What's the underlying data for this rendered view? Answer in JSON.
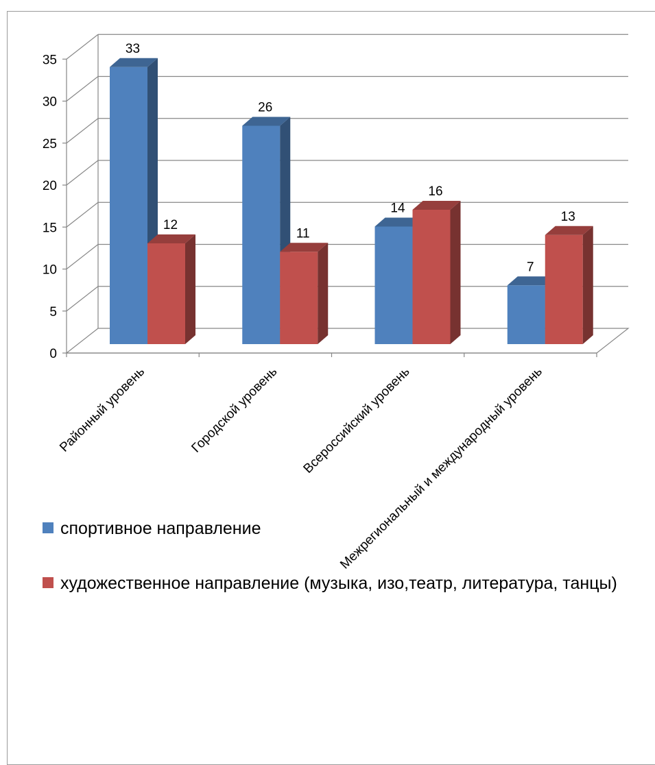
{
  "chart_data": {
    "type": "bar",
    "style": "3d-clustered-column",
    "categories": [
      "Районный уровень",
      "Городской уровень",
      "Всероссийский уровень",
      "Межрегиональный и международный уровень"
    ],
    "series": [
      {
        "name": "спортивное направление",
        "values": [
          33,
          26,
          14,
          7
        ],
        "color": "#4F81BD"
      },
      {
        "name": "художественное направление (музыка, изо,театр, литература, танцы)",
        "values": [
          12,
          11,
          16,
          13
        ],
        "color": "#C0504D"
      }
    ],
    "ylim": [
      0,
      35
    ],
    "yticks": [
      "0",
      "5",
      "10",
      "15",
      "20",
      "25",
      "30",
      "35"
    ],
    "grid": true,
    "legend_position": "bottom",
    "data_labels": true
  }
}
